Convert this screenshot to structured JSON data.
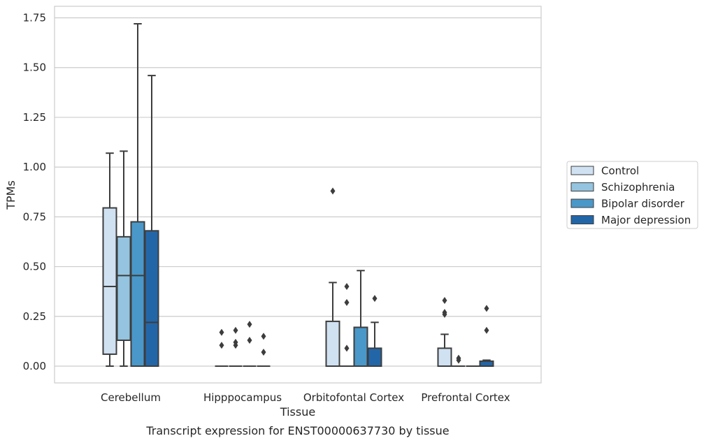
{
  "caption": "Transcript expression for ENST00000637730 by tissue",
  "chart_data": {
    "type": "box",
    "xlabel": "Tissue",
    "ylabel": "TPMs",
    "ylim": [
      -0.08,
      1.81
    ],
    "yticks": [
      "0.00",
      "0.25",
      "0.50",
      "0.75",
      "1.00",
      "1.25",
      "1.50",
      "1.75"
    ],
    "ytick_values": [
      0,
      0.25,
      0.5,
      0.75,
      1.0,
      1.25,
      1.5,
      1.75
    ],
    "grid": true,
    "legend_position": "right",
    "categories": [
      "Cerebellum",
      "Hipppocampus",
      "Orbitofontal Cortex",
      "Prefrontal Cortex"
    ],
    "series": [
      {
        "name": "Control",
        "color": "#d0e1f2",
        "boxes": [
          {
            "whislo": 0,
            "q1": 0.06,
            "med": 0.4,
            "q3": 0.795,
            "whishi": 1.07,
            "fliers": []
          },
          {
            "whislo": 0,
            "q1": 0,
            "med": 0,
            "q3": 0,
            "whishi": 0,
            "fliers": [
              0.17,
              0.105
            ]
          },
          {
            "whislo": 0,
            "q1": 0,
            "med": 0,
            "q3": 0.225,
            "whishi": 0.42,
            "fliers": [
              0.88
            ]
          },
          {
            "whislo": 0,
            "q1": 0,
            "med": 0,
            "q3": 0.09,
            "whishi": 0.16,
            "fliers": [
              0.33,
              0.27,
              0.26
            ]
          }
        ]
      },
      {
        "name": "Schizophrenia",
        "color": "#94c4df",
        "boxes": [
          {
            "whislo": 0,
            "q1": 0.13,
            "med": 0.455,
            "q3": 0.65,
            "whishi": 1.08,
            "fliers": []
          },
          {
            "whislo": 0,
            "q1": 0,
            "med": 0,
            "q3": 0,
            "whishi": 0,
            "fliers": [
              0.18,
              0.12,
              0.105
            ]
          },
          {
            "whislo": 0,
            "q1": 0,
            "med": 0,
            "q3": 0,
            "whishi": 0,
            "fliers": [
              0.4,
              0.32,
              0.09
            ]
          },
          {
            "whislo": 0,
            "q1": 0,
            "med": 0,
            "q3": 0,
            "whishi": 0,
            "fliers": [
              0.04,
              0.03
            ]
          }
        ]
      },
      {
        "name": "Bipolar disorder",
        "color": "#4a98c9",
        "boxes": [
          {
            "whislo": 0,
            "q1": 0,
            "med": 0.455,
            "q3": 0.725,
            "whishi": 1.72,
            "fliers": []
          },
          {
            "whislo": 0,
            "q1": 0,
            "med": 0,
            "q3": 0,
            "whishi": 0,
            "fliers": [
              0.21,
              0.13
            ]
          },
          {
            "whislo": 0,
            "q1": 0,
            "med": 0,
            "q3": 0.195,
            "whishi": 0.48,
            "fliers": []
          },
          {
            "whislo": 0,
            "q1": 0,
            "med": 0,
            "q3": 0,
            "whishi": 0,
            "fliers": []
          }
        ]
      },
      {
        "name": "Major depression",
        "color": "#2366a8",
        "boxes": [
          {
            "whislo": 0,
            "q1": 0,
            "med": 0.22,
            "q3": 0.68,
            "whishi": 1.46,
            "fliers": []
          },
          {
            "whislo": 0,
            "q1": 0,
            "med": 0,
            "q3": 0,
            "whishi": 0,
            "fliers": [
              0.15,
              0.07
            ]
          },
          {
            "whislo": 0,
            "q1": 0,
            "med": 0,
            "q3": 0.09,
            "whishi": 0.22,
            "fliers": [
              0.34
            ]
          },
          {
            "whislo": 0,
            "q1": 0,
            "med": 0,
            "q3": 0.025,
            "whishi": 0.03,
            "fliers": [
              0.29,
              0.18
            ]
          }
        ]
      }
    ]
  }
}
